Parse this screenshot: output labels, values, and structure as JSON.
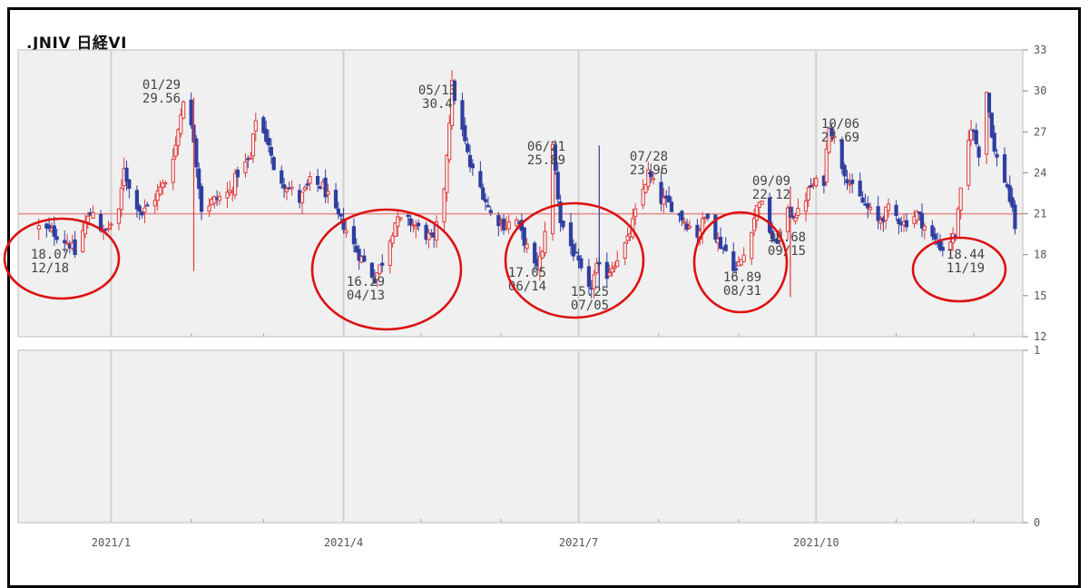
{
  "title": ".JNIV 日経VI",
  "colors": {
    "up": "#e03a3a",
    "down": "#2f3ea0",
    "circle": "#dd1111",
    "refline": "#e88888",
    "plot_bg": "#f0f0f0",
    "grid": "#d0d0d0"
  },
  "chart_data": [
    {
      "type": "candlestick",
      "title": ".JNIV 日経VI",
      "x_ticks": [
        "2021/1",
        "2021/4",
        "2021/7",
        "2021/10"
      ],
      "y_ticks": [
        12,
        15,
        18,
        21,
        24,
        27,
        30,
        33
      ],
      "ylim": [
        12,
        33
      ],
      "reference_line": 21,
      "grid": true,
      "annotations": [
        {
          "date": "12/18",
          "value": "18.07"
        },
        {
          "date": "01/29",
          "value": "29.56"
        },
        {
          "date": "04/13",
          "value": "16.29"
        },
        {
          "date": "05/13",
          "value": "30.4"
        },
        {
          "date": "06/14",
          "value": "17.05"
        },
        {
          "date": "06/21",
          "value": "25.89"
        },
        {
          "date": "07/05",
          "value": "15.25"
        },
        {
          "date": "07/28",
          "value": "23.96"
        },
        {
          "date": "08/31",
          "value": "16.89"
        },
        {
          "date": "09/09",
          "value": "22.12"
        },
        {
          "date": "09/15",
          "value": "18.68"
        },
        {
          "date": "10/06",
          "value": "27.69"
        },
        {
          "date": "11/19",
          "value": "18.44"
        }
      ],
      "close_path": [
        [
          "2020-12-04",
          20.0
        ],
        [
          "2020-12-10",
          19.6
        ],
        [
          "2020-12-16",
          18.8
        ],
        [
          "2020-12-18",
          18.07
        ],
        [
          "2020-12-22",
          20.3
        ],
        [
          "2020-12-25",
          21.3
        ],
        [
          "2020-12-29",
          19.5
        ],
        [
          "2021-01-04",
          21.0
        ],
        [
          "2021-01-06",
          24.5
        ],
        [
          "2021-01-08",
          22.8
        ],
        [
          "2021-01-13",
          21.0
        ],
        [
          "2021-01-18",
          22.2
        ],
        [
          "2021-01-22",
          23.4
        ],
        [
          "2021-01-26",
          26.0
        ],
        [
          "2021-01-29",
          29.56
        ],
        [
          "2021-02-02",
          26.5
        ],
        [
          "2021-02-05",
          21.4
        ],
        [
          "2021-02-10",
          22.0
        ],
        [
          "2021-02-16",
          22.6
        ],
        [
          "2021-02-19",
          24.0
        ],
        [
          "2021-02-24",
          25.0
        ],
        [
          "2021-02-26",
          28.0
        ],
        [
          "2021-03-03",
          26.2
        ],
        [
          "2021-03-05",
          24.0
        ],
        [
          "2021-03-10",
          23.1
        ],
        [
          "2021-03-15",
          22.0
        ],
        [
          "2021-03-19",
          23.3
        ],
        [
          "2021-03-24",
          23.0
        ],
        [
          "2021-03-29",
          21.0
        ],
        [
          "2021-04-01",
          20.2
        ],
        [
          "2021-04-06",
          18.3
        ],
        [
          "2021-04-13",
          16.29
        ],
        [
          "2021-04-16",
          17.5
        ],
        [
          "2021-04-21",
          20.4
        ],
        [
          "2021-04-26",
          20.5
        ],
        [
          "2021-04-30",
          19.9
        ],
        [
          "2021-05-06",
          19.0
        ],
        [
          "2021-05-10",
          23.0
        ],
        [
          "2021-05-13",
          30.4
        ],
        [
          "2021-05-17",
          27.0
        ],
        [
          "2021-05-20",
          24.5
        ],
        [
          "2021-05-25",
          22.5
        ],
        [
          "2021-05-28",
          21.0
        ],
        [
          "2021-06-02",
          20.2
        ],
        [
          "2021-06-07",
          20.5
        ],
        [
          "2021-06-10",
          19.0
        ],
        [
          "2021-06-14",
          17.05
        ],
        [
          "2021-06-17",
          18.0
        ],
        [
          "2021-06-21",
          25.89
        ],
        [
          "2021-06-24",
          20.5
        ],
        [
          "2021-06-29",
          18.2
        ],
        [
          "2021-07-02",
          16.7
        ],
        [
          "2021-07-05",
          15.25
        ],
        [
          "2021-07-08",
          17.0
        ],
        [
          "2021-07-12",
          16.6
        ],
        [
          "2021-07-15",
          17.5
        ],
        [
          "2021-07-20",
          19.0
        ],
        [
          "2021-07-23",
          21.0
        ],
        [
          "2021-07-28",
          23.96
        ],
        [
          "2021-08-02",
          22.0
        ],
        [
          "2021-08-06",
          21.6
        ],
        [
          "2021-08-11",
          20.5
        ],
        [
          "2021-08-16",
          19.5
        ],
        [
          "2021-08-20",
          21.1
        ],
        [
          "2021-08-24",
          19.0
        ],
        [
          "2021-08-27",
          18.3
        ],
        [
          "2021-08-31",
          16.89
        ],
        [
          "2021-09-03",
          18.0
        ],
        [
          "2021-09-09",
          22.12
        ],
        [
          "2021-09-15",
          18.68
        ],
        [
          "2021-09-20",
          21.0
        ],
        [
          "2021-09-24",
          21.0
        ],
        [
          "2021-09-29",
          23.0
        ],
        [
          "2021-10-04",
          23.5
        ],
        [
          "2021-10-06",
          27.69
        ],
        [
          "2021-10-11",
          24.6
        ],
        [
          "2021-10-15",
          22.8
        ],
        [
          "2021-10-20",
          21.6
        ],
        [
          "2021-10-25",
          20.4
        ],
        [
          "2021-10-29",
          21.3
        ],
        [
          "2021-11-04",
          20.3
        ],
        [
          "2021-11-09",
          21.0
        ],
        [
          "2021-11-15",
          19.2
        ],
        [
          "2021-11-19",
          18.44
        ],
        [
          "2021-11-24",
          19.5
        ],
        [
          "2021-11-26",
          22.5
        ],
        [
          "2021-11-30",
          27.5
        ],
        [
          "2021-12-03",
          25.5
        ],
        [
          "2021-12-06",
          30.0
        ],
        [
          "2021-12-09",
          25.5
        ],
        [
          "2021-12-14",
          23.0
        ],
        [
          "2021-12-17",
          20.1
        ]
      ]
    },
    {
      "type": "line",
      "title": "",
      "y_ticks": [
        0,
        1
      ],
      "ylim": [
        0,
        1
      ],
      "x_ticks": [
        "2021/1",
        "2021/4",
        "2021/7",
        "2021/10"
      ],
      "series": []
    }
  ]
}
